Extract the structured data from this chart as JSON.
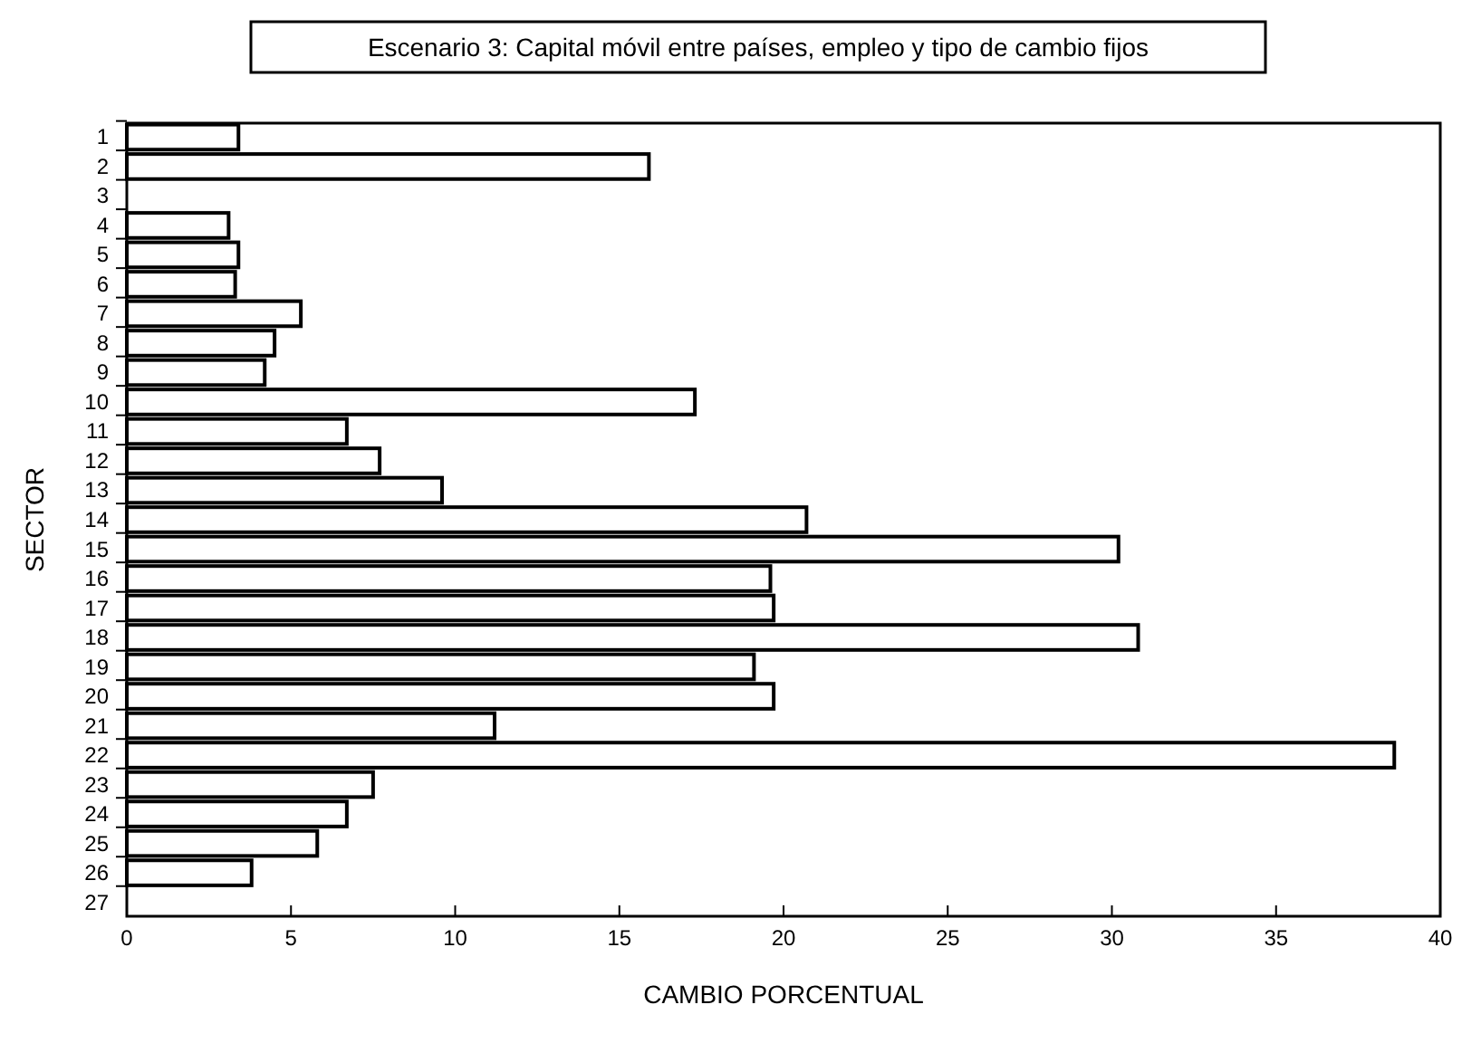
{
  "chart_data": {
    "type": "bar",
    "orientation": "horizontal",
    "title": "Escenario 3: Capital móvil entre países,  empleo y tipo de cambio fijos",
    "xlabel": "CAMBIO PORCENTUAL",
    "ylabel": "SECTOR",
    "categories": [
      "1",
      "2",
      "3",
      "4",
      "5",
      "6",
      "7",
      "8",
      "9",
      "10",
      "11",
      "12",
      "13",
      "14",
      "15",
      "16",
      "17",
      "18",
      "19",
      "20",
      "21",
      "22",
      "23",
      "24",
      "25",
      "26",
      "27"
    ],
    "values": [
      3.4,
      15.9,
      0,
      3.1,
      3.4,
      3.3,
      5.3,
      4.5,
      4.2,
      17.3,
      6.7,
      7.7,
      9.6,
      20.7,
      30.2,
      19.6,
      19.7,
      30.8,
      19.1,
      19.7,
      11.2,
      38.6,
      7.5,
      6.7,
      5.8,
      3.8,
      0
    ],
    "color": "#ffffff",
    "xlim": [
      0,
      40
    ],
    "xticks": [
      0,
      5,
      10,
      15,
      20,
      25,
      30,
      35,
      40
    ],
    "grid": false
  }
}
